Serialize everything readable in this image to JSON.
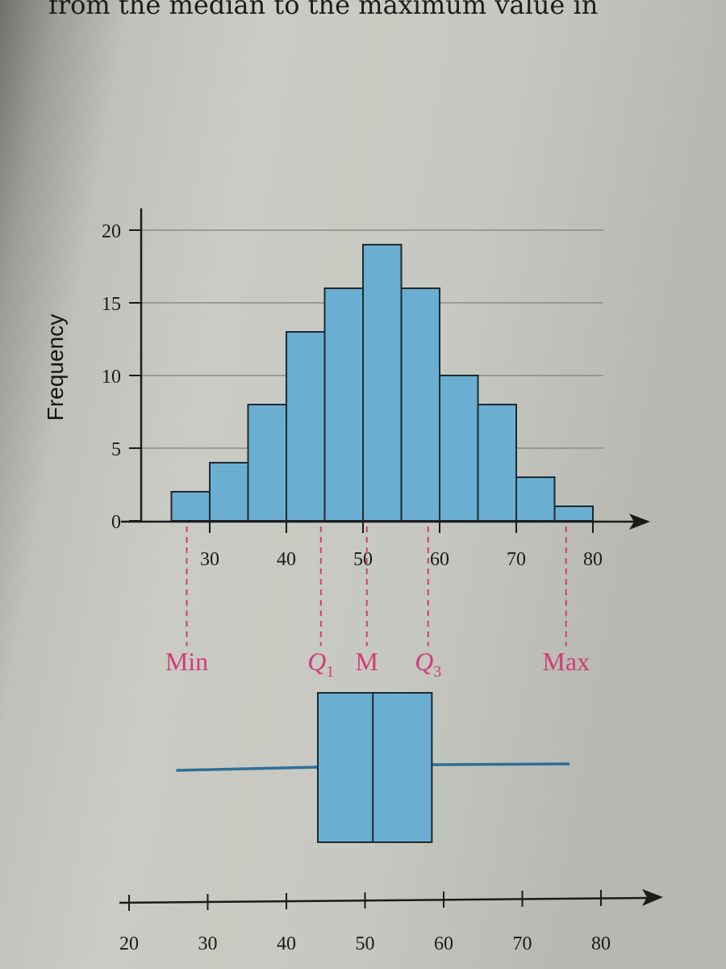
{
  "page": {
    "top_line": "from the median to the maximum value in"
  },
  "colors": {
    "bar_fill": "#6aaed2",
    "bar_stroke": "#1e2a30",
    "marker": "#d23c7a",
    "whisker": "#2f6f98",
    "axis": "#1b1b1b",
    "grid": "#8a8d86"
  },
  "chart_data": [
    {
      "type": "bar",
      "xlabel": "",
      "ylabel": "Frequency",
      "bin_edges": [
        25,
        30,
        35,
        40,
        45,
        50,
        55,
        60,
        65,
        70,
        75,
        80
      ],
      "values": [
        2,
        4,
        8,
        13,
        16,
        19,
        16,
        10,
        8,
        3,
        1
      ],
      "xticks": [
        30,
        40,
        50,
        60,
        70,
        80
      ],
      "yticks": [
        0,
        5,
        10,
        15,
        20
      ],
      "xlim": [
        20,
        80
      ],
      "ylim": [
        0,
        20
      ],
      "grid": true,
      "markers": [
        {
          "label": "Min",
          "sub": "",
          "value": 27
        },
        {
          "label": "Q",
          "sub": "1",
          "value": 44.5
        },
        {
          "label": "M",
          "sub": "",
          "value": 50.5
        },
        {
          "label": "Q",
          "sub": "3",
          "value": 58.5
        },
        {
          "label": "Max",
          "sub": "",
          "value": 76.5
        }
      ]
    },
    {
      "type": "boxplot",
      "min": 26,
      "q1": 44,
      "median": 51,
      "q3": 58.5,
      "max": 76,
      "xticks": [
        20,
        30,
        40,
        50,
        60,
        70,
        80
      ],
      "xlim": [
        20,
        80
      ]
    }
  ]
}
